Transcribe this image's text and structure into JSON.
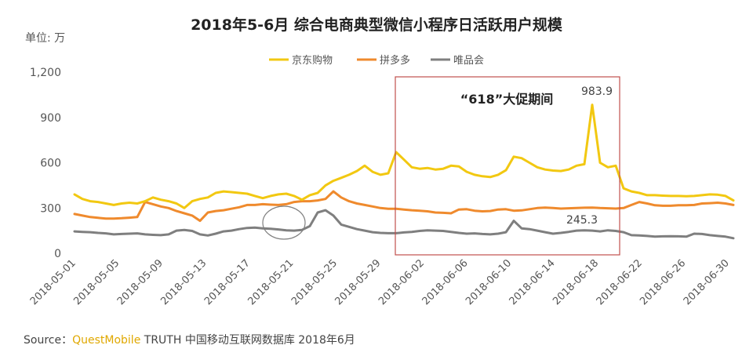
{
  "chart_data": {
    "type": "line",
    "title": "2018年5-6月 综合电商典型微信小程序日活跃用户规模",
    "ylabel": "单位: 万",
    "ylim": [
      0,
      1200
    ],
    "yticks": [
      0,
      300,
      600,
      900,
      1200
    ],
    "ytick_labels": [
      "0",
      "300",
      "600",
      "900",
      "1,200"
    ],
    "x_tick_labels": [
      "2018-05-01",
      "2018-05-05",
      "2018-05-09",
      "2018-05-13",
      "2018-05-17",
      "2018-05-21",
      "2018-05-25",
      "2018-05-29",
      "2018-06-02",
      "2018-06-06",
      "2018-06-10",
      "2018-06-14",
      "2018-06-18",
      "2018-06-22",
      "2018-06-26",
      "2018-06-30"
    ],
    "series": [
      {
        "name": "京东购物",
        "color": "#f2c811",
        "values": [
          390,
          360,
          345,
          340,
          330,
          320,
          330,
          335,
          330,
          345,
          370,
          355,
          345,
          330,
          300,
          345,
          360,
          370,
          400,
          410,
          405,
          400,
          395,
          380,
          365,
          380,
          390,
          395,
          380,
          355,
          385,
          400,
          450,
          480,
          500,
          520,
          545,
          580,
          540,
          520,
          530,
          670,
          620,
          570,
          560,
          565,
          555,
          560,
          580,
          575,
          540,
          520,
          510,
          505,
          520,
          550,
          640,
          630,
          600,
          570,
          555,
          548,
          545,
          555,
          580,
          590,
          983.9,
          600,
          570,
          580,
          430,
          410,
          400,
          385,
          385,
          382,
          380,
          380,
          378,
          380,
          385,
          390,
          388,
          380,
          350
        ]
      },
      {
        "name": "拼多多",
        "color": "#ef8a2d",
        "values": [
          260,
          250,
          240,
          235,
          230,
          230,
          232,
          236,
          240,
          340,
          325,
          310,
          300,
          280,
          265,
          250,
          215,
          270,
          280,
          285,
          295,
          305,
          320,
          320,
          325,
          322,
          320,
          325,
          340,
          345,
          345,
          350,
          360,
          410,
          370,
          345,
          330,
          320,
          310,
          300,
          295,
          295,
          290,
          285,
          282,
          278,
          270,
          268,
          265,
          290,
          292,
          282,
          278,
          280,
          290,
          292,
          282,
          284,
          292,
          300,
          303,
          300,
          296,
          298,
          300,
          302,
          303,
          300,
          298,
          296,
          300,
          320,
          340,
          330,
          318,
          315,
          315,
          318,
          318,
          320,
          330,
          332,
          335,
          330,
          320
        ]
      },
      {
        "name": "唯品会",
        "color": "#7f7f7f",
        "values": [
          145,
          142,
          140,
          135,
          132,
          125,
          128,
          130,
          132,
          125,
          122,
          120,
          125,
          150,
          155,
          148,
          125,
          118,
          130,
          145,
          150,
          160,
          168,
          170,
          165,
          162,
          158,
          152,
          150,
          155,
          180,
          270,
          285,
          250,
          190,
          175,
          160,
          150,
          140,
          135,
          133,
          133,
          138,
          142,
          148,
          152,
          150,
          148,
          142,
          135,
          130,
          132,
          128,
          125,
          130,
          140,
          215,
          165,
          160,
          150,
          140,
          130,
          135,
          142,
          150,
          152,
          150,
          145,
          152,
          148,
          140,
          120,
          118,
          115,
          110,
          112,
          113,
          112,
          110,
          130,
          128,
          120,
          115,
          110,
          100
        ]
      }
    ],
    "annotations": [
      {
        "text": "983.9"
      },
      {
        "text": "245.3"
      },
      {
        "text": "“618”大促期间"
      }
    ]
  },
  "legend": [
    "京东购物",
    "拼多多",
    "唯品会"
  ],
  "source": {
    "prefix": "Source：",
    "brand": "QuestMobile",
    "rest": " TRUTH 中国移动互联网数据库 2018年6月"
  }
}
